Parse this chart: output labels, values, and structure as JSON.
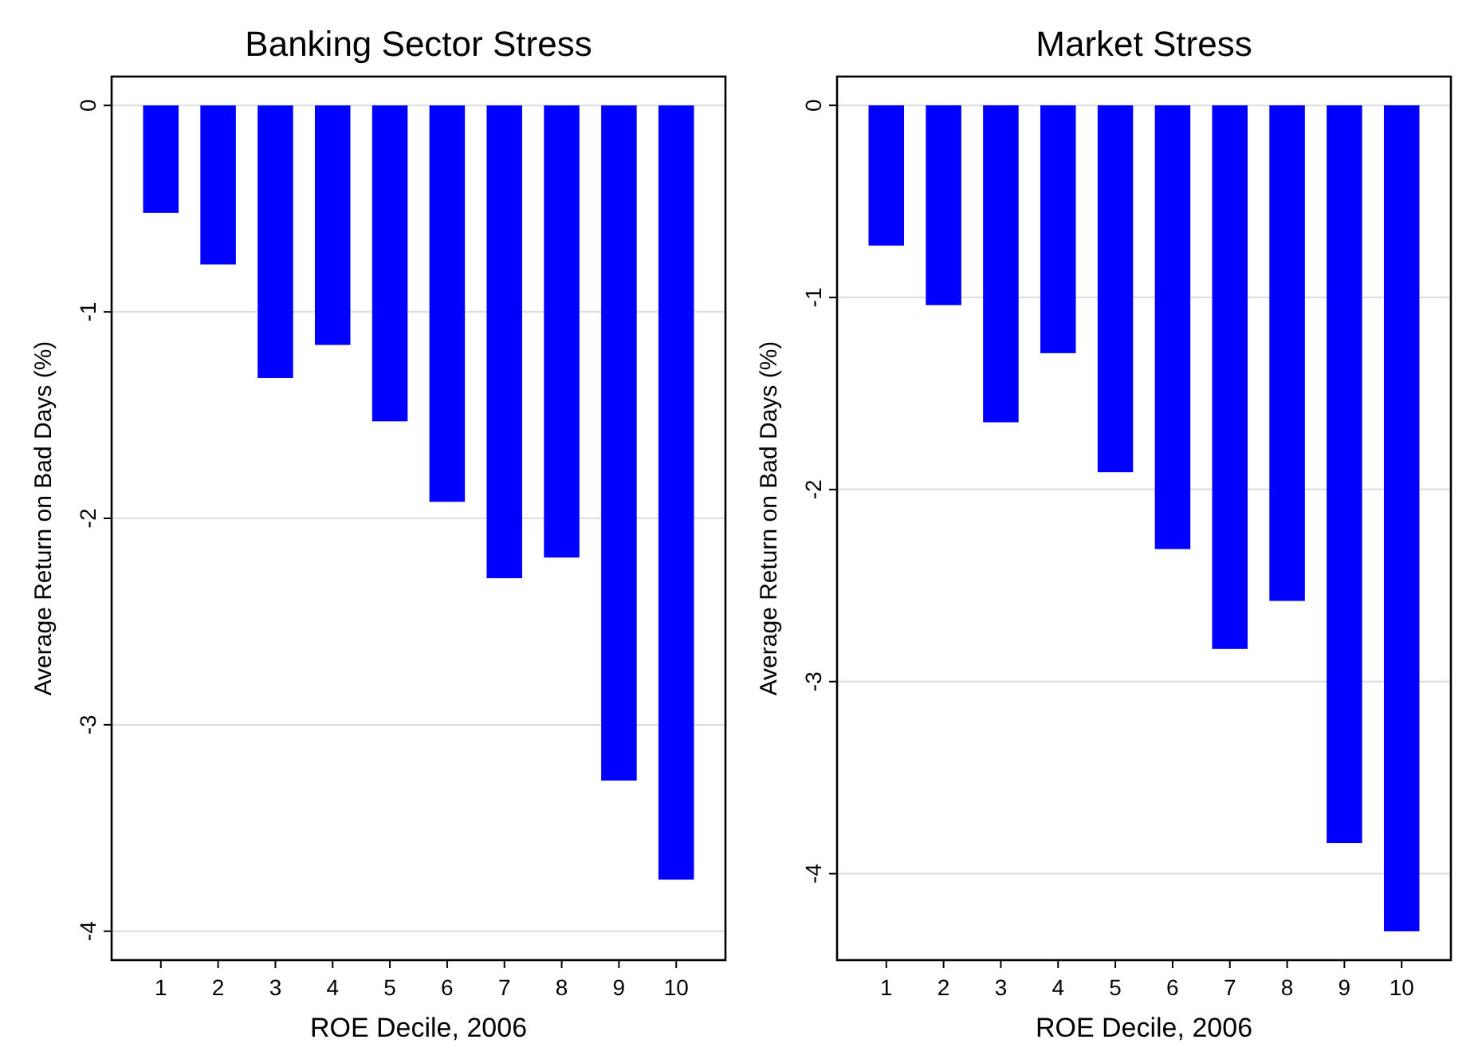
{
  "chart_data": [
    {
      "type": "bar",
      "title": "Banking Sector Stress",
      "xlabel": "ROE Decile, 2006",
      "ylabel": "Average Return on Bad Days (%)",
      "categories": [
        "1",
        "2",
        "3",
        "4",
        "5",
        "6",
        "7",
        "8",
        "9",
        "10"
      ],
      "series": [
        {
          "color": "#0000ff",
          "values": [
            -0.52,
            -0.77,
            -1.32,
            -1.16,
            -1.53,
            -1.92,
            -2.29,
            -2.19,
            -3.27,
            -3.75
          ]
        }
      ],
      "ylim": [
        -4.14,
        0.14
      ],
      "yticks": [
        -4,
        -3,
        -2,
        -1,
        0
      ],
      "grid": "y"
    },
    {
      "type": "bar",
      "title": "Market Stress",
      "xlabel": "ROE Decile, 2006",
      "ylabel": "Average Return on Bad Days (%)",
      "categories": [
        "1",
        "2",
        "3",
        "4",
        "5",
        "6",
        "7",
        "8",
        "9",
        "10"
      ],
      "series": [
        {
          "color": "#0000ff",
          "values": [
            -0.73,
            -1.04,
            -1.65,
            -1.29,
            -1.91,
            -2.31,
            -2.83,
            -2.58,
            -3.84,
            -4.3
          ]
        }
      ],
      "ylim": [
        -4.45,
        0.15
      ],
      "yticks": [
        -4,
        -3,
        -2,
        -1,
        0
      ],
      "grid": "y"
    }
  ]
}
